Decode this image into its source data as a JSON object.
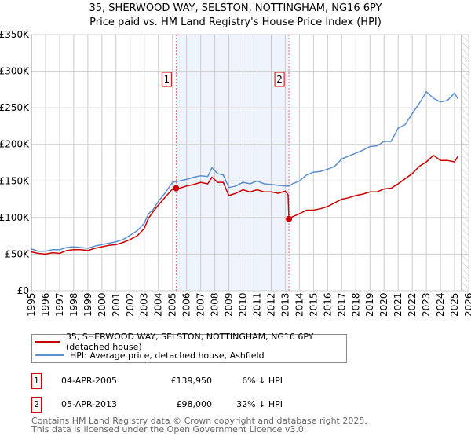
{
  "chart_data": {
    "type": "line",
    "title": "35, SHERWOOD WAY, SELSTON, NOTTINGHAM, NG16 6PY",
    "subtitle": "Price paid vs. HM Land Registry's House Price Index (HPI)",
    "xlim": [
      1995,
      2026
    ],
    "ylim": [
      0,
      350000
    ],
    "y_ticks": [
      {
        "v": 0,
        "label": "£0"
      },
      {
        "v": 50000,
        "label": "£50K"
      },
      {
        "v": 100000,
        "label": "£100K"
      },
      {
        "v": 150000,
        "label": "£150K"
      },
      {
        "v": 200000,
        "label": "£200K"
      },
      {
        "v": 250000,
        "label": "£250K"
      },
      {
        "v": 300000,
        "label": "£300K"
      },
      {
        "v": 350000,
        "label": "£350K"
      }
    ],
    "x_ticks": [
      "1995",
      "1996",
      "1997",
      "1998",
      "1999",
      "2000",
      "2001",
      "2002",
      "2003",
      "2004",
      "2005",
      "2006",
      "2007",
      "2008",
      "2009",
      "2010",
      "2011",
      "2012",
      "2013",
      "2014",
      "2015",
      "2016",
      "2017",
      "2018",
      "2019",
      "2020",
      "2021",
      "2022",
      "2023",
      "2024",
      "2025",
      "2026"
    ],
    "grid": true,
    "shaded_range": [
      2005.26,
      2013.26
    ],
    "forecast_hatch_from": 2025.5,
    "series": [
      {
        "name": "35, SHERWOOD WAY, SELSTON, NOTTINGHAM, NG16 6PY (detached house)",
        "color": "#cc0000",
        "x": [
          1995,
          1995.5,
          1996,
          1996.5,
          1997,
          1997.5,
          1998,
          1998.5,
          1999,
          1999.5,
          2000,
          2000.5,
          2001,
          2001.5,
          2002,
          2002.5,
          2003,
          2003.3,
          2003.6,
          2004,
          2004.5,
          2005,
          2005.26,
          2005.5,
          2006,
          2006.5,
          2007,
          2007.5,
          2007.8,
          2008.2,
          2008.6,
          2009,
          2009.5,
          2010,
          2010.5,
          2011,
          2011.5,
          2012,
          2012.5,
          2013,
          2013.2,
          2013.26,
          2013.5,
          2014,
          2014.5,
          2015,
          2015.5,
          2016,
          2016.5,
          2017,
          2017.5,
          2018,
          2018.5,
          2019,
          2019.5,
          2020,
          2020.5,
          2021,
          2021.5,
          2022,
          2022.5,
          2023,
          2023.5,
          2024,
          2024.5,
          2025,
          2025.25
        ],
        "y": [
          53000,
          51000,
          50000,
          52000,
          51000,
          55000,
          56000,
          56000,
          55000,
          58000,
          60000,
          62000,
          63000,
          66000,
          70000,
          75000,
          85000,
          99000,
          107000,
          117000,
          128000,
          139000,
          139950,
          140000,
          143000,
          145000,
          148000,
          146000,
          155000,
          148000,
          148000,
          130000,
          133000,
          138000,
          135000,
          138000,
          135000,
          135000,
          133000,
          136000,
          131000,
          98000,
          101000,
          105000,
          110000,
          110000,
          112000,
          115000,
          120000,
          125000,
          127000,
          130000,
          132000,
          135000,
          135000,
          139000,
          140000,
          146000,
          153000,
          160000,
          170000,
          176000,
          185000,
          178000,
          178000,
          176000,
          184000
        ]
      },
      {
        "name": "HPI: Average price, detached house, Ashfield",
        "color": "#5b8fd0",
        "x": [
          1995,
          1995.5,
          1996,
          1996.5,
          1997,
          1997.5,
          1998,
          1998.5,
          1999,
          1999.5,
          2000,
          2000.5,
          2001,
          2001.5,
          2002,
          2002.5,
          2003,
          2003.3,
          2003.6,
          2004,
          2004.5,
          2005,
          2005.5,
          2006,
          2006.5,
          2007,
          2007.5,
          2007.8,
          2008.2,
          2008.6,
          2009,
          2009.5,
          2010,
          2010.5,
          2011,
          2011.5,
          2012,
          2012.5,
          2013,
          2013.26,
          2013.5,
          2014,
          2014.5,
          2015,
          2015.5,
          2016,
          2016.5,
          2017,
          2017.5,
          2018,
          2018.5,
          2019,
          2019.5,
          2020,
          2020.5,
          2021,
          2021.5,
          2022,
          2022.5,
          2023,
          2023.5,
          2024,
          2024.5,
          2025,
          2025.25
        ],
        "y": [
          57000,
          54000,
          54000,
          56000,
          56000,
          59000,
          60000,
          59000,
          58000,
          61000,
          63000,
          65000,
          67000,
          70000,
          76000,
          82000,
          92000,
          105000,
          110000,
          122000,
          134000,
          148000,
          150000,
          152000,
          155000,
          157000,
          156000,
          168000,
          160000,
          158000,
          141000,
          143000,
          148000,
          146000,
          150000,
          146000,
          145000,
          144000,
          143000,
          143000,
          146000,
          150000,
          158000,
          162000,
          163000,
          166000,
          170000,
          180000,
          184000,
          188000,
          192000,
          197000,
          198000,
          204000,
          204000,
          222000,
          227000,
          242000,
          256000,
          272000,
          263000,
          258000,
          260000,
          270000,
          262000
        ]
      }
    ],
    "markers": [
      {
        "label": "1",
        "x": 2005.26,
        "y": 139950
      },
      {
        "label": "2",
        "x": 2013.26,
        "y": 98000
      }
    ]
  },
  "legend": {
    "red": "35, SHERWOOD WAY, SELSTON, NOTTINGHAM, NG16 6PY (detached house)",
    "blue": "HPI: Average price, detached house, Ashfield"
  },
  "sales": [
    {
      "num": "1",
      "date": "04-APR-2005",
      "price": "£139,950",
      "hpi": "6% ↓ HPI"
    },
    {
      "num": "2",
      "date": "05-APR-2013",
      "price": "£98,000",
      "hpi": "32% ↓ HPI"
    }
  ],
  "footer": {
    "line1": "Contains HM Land Registry data © Crown copyright and database right 2025.",
    "line2": "This data is licensed under the Open Government Licence v3.0."
  }
}
